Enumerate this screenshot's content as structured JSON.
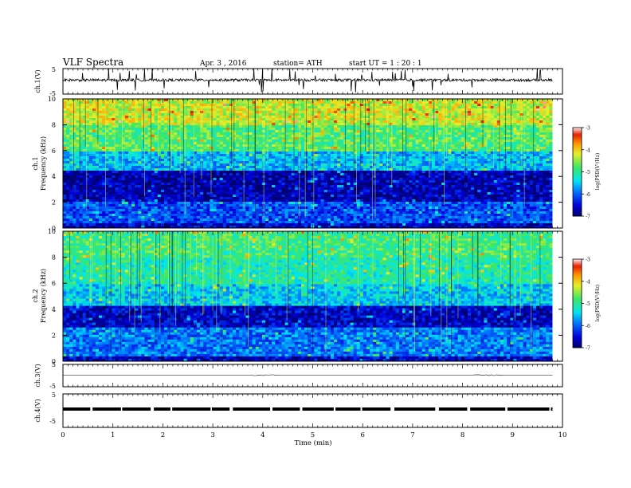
{
  "header": {
    "title": "VLF  Spectra",
    "date": "Apr. 3   , 2016",
    "station": "station= ATH",
    "start": "start  UT  =    1   : 20 : 1"
  },
  "chart_data": [
    {
      "type": "line",
      "panel": "ch1-waveform",
      "ylabel": "ch.1(V)",
      "yticks": [
        "5",
        "-5"
      ],
      "ylim": [
        -5,
        5
      ],
      "xlim": [
        0,
        10
      ],
      "description_values": {
        "baseline": 0.5,
        "noise_amplitude": 1.0,
        "end_min": 9.8
      }
    },
    {
      "type": "heatmap",
      "panel": "ch1-spectrogram",
      "ylabel": "Frequency  (kHz)",
      "channel_label": "ch.1",
      "yticks": [
        "0",
        "2",
        "4",
        "6",
        "8",
        "10"
      ],
      "ylim": [
        0,
        10
      ],
      "xlim": [
        0,
        10
      ],
      "colorbar": {
        "label": "log(PSD(V²/Hz)",
        "ticks": [
          "-3",
          "-4",
          "-5",
          "-6",
          "-7"
        ],
        "range": [
          -7,
          -3
        ]
      },
      "bands": [
        {
          "from_khz": 0.0,
          "to_khz": 0.4,
          "level": -6.6
        },
        {
          "from_khz": 0.4,
          "to_khz": 2.0,
          "level": -6.1
        },
        {
          "from_khz": 2.0,
          "to_khz": 4.4,
          "level": -6.7
        },
        {
          "from_khz": 4.4,
          "to_khz": 6.0,
          "level": -5.6
        },
        {
          "from_khz": 6.0,
          "to_khz": 8.0,
          "level": -4.8
        },
        {
          "from_khz": 8.0,
          "to_khz": 10.0,
          "level": -4.3
        }
      ]
    },
    {
      "type": "heatmap",
      "panel": "ch2-spectrogram",
      "ylabel": "Frequency  (kHz)",
      "channel_label": "ch.2",
      "yticks": [
        "0",
        "2",
        "4",
        "6",
        "8",
        "10"
      ],
      "ylim": [
        0,
        10
      ],
      "xlim": [
        0,
        10
      ],
      "colorbar": {
        "label": "log(PSD(V²/Hz)",
        "ticks": [
          "-3",
          "-4",
          "-5",
          "-6",
          "-7"
        ],
        "range": [
          -7,
          -3
        ]
      },
      "bands": [
        {
          "from_khz": 0.0,
          "to_khz": 0.3,
          "level": -6.6
        },
        {
          "from_khz": 0.3,
          "to_khz": 2.5,
          "level": -5.9
        },
        {
          "from_khz": 2.5,
          "to_khz": 4.2,
          "level": -6.6
        },
        {
          "from_khz": 4.2,
          "to_khz": 6.0,
          "level": -5.5
        },
        {
          "from_khz": 6.0,
          "to_khz": 8.0,
          "level": -5.1
        },
        {
          "from_khz": 8.0,
          "to_khz": 10.0,
          "level": -4.9
        }
      ]
    },
    {
      "type": "line",
      "panel": "ch3-waveform",
      "ylabel": "ch.3(V)",
      "yticks": [
        "5",
        "-5"
      ],
      "ylim": [
        -5,
        5
      ],
      "xlim": [
        0,
        10
      ]
    },
    {
      "type": "line",
      "panel": "ch4-waveform",
      "ylabel": "ch.4(V)",
      "yticks": [
        "5",
        "-5"
      ],
      "ylim": [
        -5,
        5
      ],
      "xlim": [
        0,
        10
      ],
      "xlabel": "Time  (min)",
      "xticks": [
        "0",
        "1",
        "2",
        "3",
        "4",
        "5",
        "6",
        "7",
        "8",
        "9",
        "10"
      ]
    }
  ],
  "colors": {
    "axis": "#000000",
    "background": "#ffffff"
  }
}
